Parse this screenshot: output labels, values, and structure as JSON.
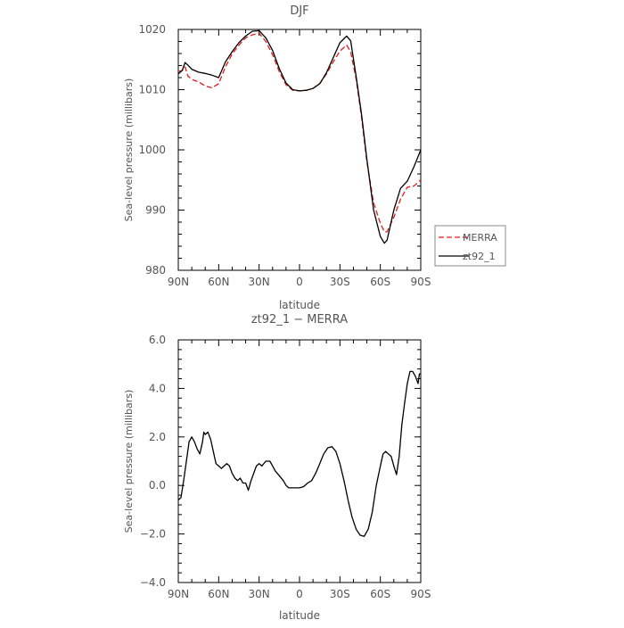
{
  "chart_data": [
    {
      "type": "line",
      "title": "DJF",
      "xlabel": "latitude",
      "ylabel": "Sea-level pressure (millibars)",
      "x_tick_labels": [
        "90N",
        "60N",
        "30N",
        "0",
        "30S",
        "60S",
        "90S"
      ],
      "x_ticks": [
        90,
        60,
        30,
        0,
        -30,
        -60,
        -90
      ],
      "y_ticks": [
        980,
        990,
        1000,
        1010,
        1020
      ],
      "y_tick_labels": [
        "980",
        "990",
        "1000",
        "1010",
        "1020"
      ],
      "xlim": [
        90,
        -90
      ],
      "ylim": [
        980,
        1020
      ],
      "legend_position": "right",
      "series": [
        {
          "name": "MERRA",
          "color": "#e41a1c",
          "dashed": true,
          "x": [
            90,
            87,
            85,
            83,
            80,
            75,
            70,
            65,
            60,
            55,
            50,
            45,
            40,
            35,
            30,
            25,
            20,
            15,
            10,
            5,
            0,
            -5,
            -10,
            -15,
            -20,
            -25,
            -30,
            -35,
            -38,
            -42,
            -46,
            -50,
            -55,
            -60,
            -63,
            -65,
            -70,
            -75,
            -80,
            -85,
            -90
          ],
          "y": [
            1013.0,
            1013.2,
            1013.8,
            1012.3,
            1011.7,
            1011.3,
            1010.6,
            1010.3,
            1011.0,
            1013.8,
            1015.9,
            1017.4,
            1018.6,
            1019.1,
            1019.4,
            1018.0,
            1015.8,
            1013.0,
            1010.8,
            1009.9,
            1009.8,
            1009.9,
            1010.2,
            1011.0,
            1012.6,
            1014.6,
            1016.4,
            1017.4,
            1016.3,
            1011.8,
            1005.5,
            998.0,
            991.2,
            987.8,
            986.4,
            986.4,
            988.8,
            991.8,
            993.8,
            994.0,
            995.0
          ]
        },
        {
          "name": "zt92_1",
          "color": "#000000",
          "dashed": false,
          "x": [
            90,
            87,
            85,
            83,
            80,
            75,
            70,
            65,
            60,
            55,
            50,
            45,
            40,
            35,
            30,
            25,
            20,
            15,
            10,
            5,
            0,
            -5,
            -10,
            -15,
            -20,
            -25,
            -30,
            -35,
            -38,
            -42,
            -46,
            -50,
            -55,
            -60,
            -63,
            -65,
            -70,
            -75,
            -80,
            -85,
            -90
          ],
          "y": [
            1012.6,
            1013.2,
            1014.5,
            1014.1,
            1013.4,
            1012.9,
            1012.7,
            1012.4,
            1012.0,
            1014.6,
            1016.3,
            1017.8,
            1018.9,
            1019.7,
            1019.8,
            1018.6,
            1016.5,
            1013.5,
            1011.1,
            1010.0,
            1009.8,
            1009.9,
            1010.2,
            1011.0,
            1012.8,
            1015.3,
            1017.8,
            1018.9,
            1018.1,
            1012.2,
            1006.0,
            998.4,
            990.0,
            985.6,
            984.5,
            985.0,
            990.0,
            993.6,
            994.8,
            997.2,
            1000.0
          ]
        }
      ]
    },
    {
      "type": "line",
      "title": "zt92_1 − MERRA",
      "xlabel": "latitude",
      "ylabel": "Sea-level pressure (millibars)",
      "x_tick_labels": [
        "90N",
        "60N",
        "30N",
        "0",
        "30S",
        "60S",
        "90S"
      ],
      "x_ticks": [
        90,
        60,
        30,
        0,
        -30,
        -60,
        -90
      ],
      "y_ticks": [
        -4,
        -2,
        0,
        2,
        4,
        6
      ],
      "y_tick_labels": [
        "−4.0",
        "−2.0",
        "0.0",
        "2.0",
        "4.0",
        "6.0"
      ],
      "xlim": [
        90,
        -90
      ],
      "ylim": [
        -4,
        6
      ],
      "series": [
        {
          "name": "",
          "color": "#000000",
          "dashed": false,
          "x": [
            90,
            88,
            86,
            84,
            82,
            80,
            78,
            76,
            74,
            72,
            71,
            70,
            68,
            66,
            64,
            62,
            60,
            58,
            56,
            54,
            52,
            50,
            48,
            46,
            44,
            42,
            40,
            38,
            36,
            34,
            32,
            30,
            28,
            25,
            22,
            20,
            18,
            15,
            12,
            10,
            8,
            5,
            2,
            0,
            -3,
            -6,
            -9,
            -12,
            -15,
            -18,
            -21,
            -24,
            -27,
            -30,
            -33,
            -36,
            -39,
            -42,
            -45,
            -48,
            -51,
            -54,
            -57,
            -60,
            -62,
            -64,
            -66,
            -68,
            -70,
            -72,
            -74,
            -76,
            -78,
            -80,
            -82,
            -84,
            -86,
            -88,
            -89,
            -90
          ],
          "y": [
            -0.6,
            -0.5,
            0.2,
            1.0,
            1.8,
            2.0,
            1.8,
            1.5,
            1.3,
            1.8,
            2.2,
            2.1,
            2.2,
            1.9,
            1.4,
            0.9,
            0.8,
            0.7,
            0.8,
            0.9,
            0.8,
            0.5,
            0.3,
            0.2,
            0.3,
            0.1,
            0.1,
            -0.2,
            0.2,
            0.5,
            0.8,
            0.9,
            0.8,
            1.0,
            1.0,
            0.8,
            0.6,
            0.4,
            0.2,
            0.0,
            -0.1,
            -0.1,
            -0.1,
            -0.1,
            -0.05,
            0.1,
            0.2,
            0.5,
            0.9,
            1.3,
            1.55,
            1.6,
            1.4,
            0.9,
            0.2,
            -0.6,
            -1.3,
            -1.8,
            -2.05,
            -2.1,
            -1.8,
            -1.1,
            0.0,
            0.8,
            1.3,
            1.4,
            1.3,
            1.2,
            0.8,
            0.45,
            1.2,
            2.5,
            3.4,
            4.2,
            4.7,
            4.7,
            4.5,
            4.2,
            4.6,
            4.6
          ]
        }
      ]
    }
  ]
}
